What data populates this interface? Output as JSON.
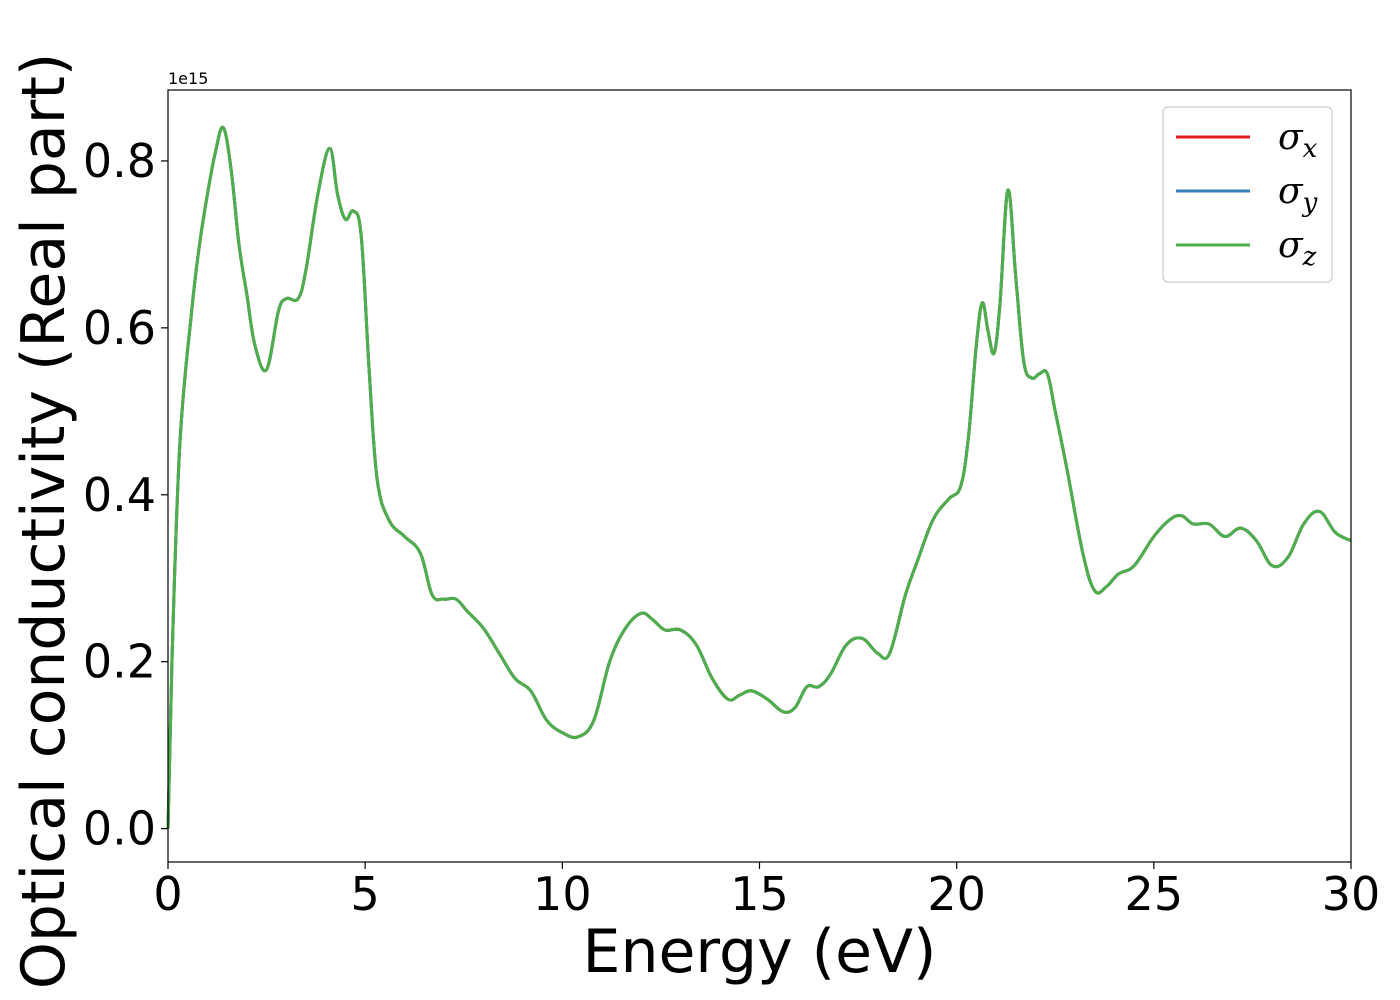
{
  "chart_data": {
    "type": "line",
    "xlabel": "Energy (eV)",
    "ylabel": "Optical conductivity (Real part)",
    "y_offset_text": "1e15",
    "y_scale": 1000000000000000.0,
    "xlim": [
      0,
      30
    ],
    "ylim": [
      -0.04,
      0.885
    ],
    "x_ticks": [
      0,
      5,
      10,
      15,
      20,
      25,
      30
    ],
    "x_tick_labels": [
      "0",
      "5",
      "10",
      "15",
      "20",
      "25",
      "30"
    ],
    "y_ticks": [
      0.0,
      0.2,
      0.4,
      0.6,
      0.8
    ],
    "y_tick_labels": [
      "0.0",
      "0.2",
      "0.4",
      "0.6",
      "0.8"
    ],
    "legend_position": "upper right",
    "x": [
      0,
      0.1,
      0.3,
      0.6,
      0.8,
      1.0,
      1.2,
      1.4,
      1.6,
      1.8,
      2.0,
      2.2,
      2.5,
      2.8,
      3.0,
      3.3,
      3.5,
      3.8,
      4.1,
      4.3,
      4.5,
      4.7,
      4.9,
      5.1,
      5.3,
      5.6,
      6.0,
      6.4,
      6.7,
      7.0,
      7.3,
      7.6,
      8.0,
      8.4,
      8.8,
      9.2,
      9.6,
      10.0,
      10.4,
      10.8,
      11.2,
      11.6,
      12.0,
      12.3,
      12.6,
      13.0,
      13.4,
      13.8,
      14.2,
      14.5,
      14.8,
      15.2,
      15.6,
      15.9,
      16.2,
      16.5,
      16.8,
      17.2,
      17.6,
      18.0,
      18.3,
      18.7,
      19.0,
      19.4,
      19.8,
      20.1,
      20.3,
      20.5,
      20.65,
      20.8,
      20.95,
      21.1,
      21.3,
      21.5,
      21.7,
      21.9,
      22.1,
      22.3,
      22.5,
      22.8,
      23.2,
      23.5,
      23.8,
      24.1,
      24.5,
      25.0,
      25.4,
      25.7,
      26.0,
      26.4,
      26.8,
      27.2,
      27.6,
      28.0,
      28.4,
      28.8,
      29.2,
      29.6,
      30.0
    ],
    "series": [
      {
        "name": "σx",
        "color": "#e41a1c",
        "y": [
          0.0,
          0.2,
          0.46,
          0.62,
          0.7,
          0.76,
          0.81,
          0.84,
          0.79,
          0.7,
          0.64,
          0.58,
          0.55,
          0.62,
          0.635,
          0.635,
          0.67,
          0.76,
          0.815,
          0.76,
          0.73,
          0.74,
          0.71,
          0.55,
          0.42,
          0.37,
          0.35,
          0.33,
          0.28,
          0.275,
          0.275,
          0.26,
          0.24,
          0.21,
          0.18,
          0.165,
          0.13,
          0.115,
          0.11,
          0.13,
          0.2,
          0.24,
          0.258,
          0.25,
          0.238,
          0.238,
          0.22,
          0.18,
          0.155,
          0.16,
          0.165,
          0.155,
          0.14,
          0.145,
          0.17,
          0.17,
          0.185,
          0.22,
          0.228,
          0.21,
          0.21,
          0.28,
          0.32,
          0.37,
          0.395,
          0.41,
          0.47,
          0.58,
          0.63,
          0.595,
          0.57,
          0.63,
          0.765,
          0.66,
          0.56,
          0.54,
          0.545,
          0.545,
          0.5,
          0.43,
          0.33,
          0.285,
          0.29,
          0.305,
          0.315,
          0.35,
          0.37,
          0.375,
          0.365,
          0.365,
          0.35,
          0.36,
          0.345,
          0.315,
          0.325,
          0.365,
          0.38,
          0.355,
          0.345
        ]
      },
      {
        "name": "σy",
        "color": "#377eb8",
        "y": [
          0.0,
          0.2,
          0.46,
          0.62,
          0.7,
          0.76,
          0.81,
          0.84,
          0.79,
          0.7,
          0.64,
          0.58,
          0.55,
          0.62,
          0.635,
          0.635,
          0.67,
          0.76,
          0.815,
          0.76,
          0.73,
          0.74,
          0.71,
          0.55,
          0.42,
          0.37,
          0.35,
          0.33,
          0.28,
          0.275,
          0.275,
          0.26,
          0.24,
          0.21,
          0.18,
          0.165,
          0.13,
          0.115,
          0.11,
          0.13,
          0.2,
          0.24,
          0.258,
          0.25,
          0.238,
          0.238,
          0.22,
          0.18,
          0.155,
          0.16,
          0.165,
          0.155,
          0.14,
          0.145,
          0.17,
          0.17,
          0.185,
          0.22,
          0.228,
          0.21,
          0.21,
          0.28,
          0.32,
          0.37,
          0.395,
          0.41,
          0.47,
          0.58,
          0.63,
          0.595,
          0.57,
          0.63,
          0.765,
          0.66,
          0.56,
          0.54,
          0.545,
          0.545,
          0.5,
          0.43,
          0.33,
          0.285,
          0.29,
          0.305,
          0.315,
          0.35,
          0.37,
          0.375,
          0.365,
          0.365,
          0.35,
          0.36,
          0.345,
          0.315,
          0.325,
          0.365,
          0.38,
          0.355,
          0.345
        ]
      },
      {
        "name": "σz",
        "color": "#4daf4a",
        "y": [
          0.0,
          0.2,
          0.46,
          0.62,
          0.7,
          0.76,
          0.81,
          0.84,
          0.79,
          0.7,
          0.64,
          0.58,
          0.55,
          0.62,
          0.635,
          0.635,
          0.67,
          0.76,
          0.815,
          0.76,
          0.73,
          0.74,
          0.71,
          0.55,
          0.42,
          0.37,
          0.35,
          0.33,
          0.28,
          0.275,
          0.275,
          0.26,
          0.24,
          0.21,
          0.18,
          0.165,
          0.13,
          0.115,
          0.11,
          0.13,
          0.2,
          0.24,
          0.258,
          0.25,
          0.238,
          0.238,
          0.22,
          0.18,
          0.155,
          0.16,
          0.165,
          0.155,
          0.14,
          0.145,
          0.17,
          0.17,
          0.185,
          0.22,
          0.228,
          0.21,
          0.21,
          0.28,
          0.32,
          0.37,
          0.395,
          0.41,
          0.47,
          0.58,
          0.63,
          0.595,
          0.57,
          0.63,
          0.765,
          0.66,
          0.56,
          0.54,
          0.545,
          0.545,
          0.5,
          0.43,
          0.33,
          0.285,
          0.29,
          0.305,
          0.315,
          0.35,
          0.37,
          0.375,
          0.365,
          0.365,
          0.35,
          0.36,
          0.345,
          0.315,
          0.325,
          0.365,
          0.38,
          0.355,
          0.345
        ]
      }
    ],
    "legend": [
      {
        "symbol": "σ",
        "sub": "x",
        "color": "#e41a1c"
      },
      {
        "symbol": "σ",
        "sub": "y",
        "color": "#377eb8"
      },
      {
        "symbol": "σ",
        "sub": "z",
        "color": "#4daf4a"
      }
    ]
  }
}
